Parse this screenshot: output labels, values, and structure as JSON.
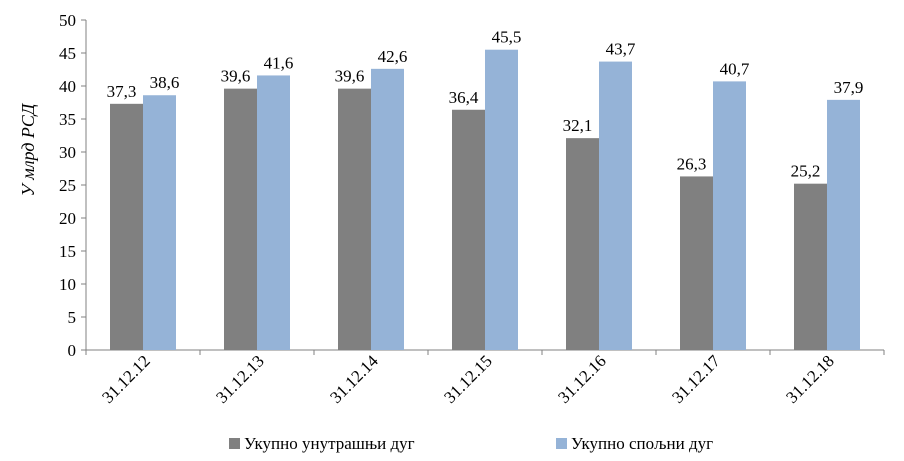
{
  "chart_data": {
    "type": "bar",
    "categories": [
      "31.12.12",
      "31.12.13",
      "31.12.14",
      "31.12.15",
      "31.12.16",
      "31.12.17",
      "31.12.18"
    ],
    "series": [
      {
        "name": "Укупно унутрашњи дуг",
        "color": "#808080",
        "values": [
          37.3,
          39.6,
          39.6,
          36.4,
          32.1,
          26.3,
          25.2
        ],
        "labels": [
          "37,3",
          "39,6",
          "39,6",
          "36,4",
          "32,1",
          "26,3",
          "25,2"
        ]
      },
      {
        "name": "Укупно спољни дуг",
        "color": "#95B3D7",
        "values": [
          38.6,
          41.6,
          42.6,
          45.5,
          43.7,
          40.7,
          37.9
        ],
        "labels": [
          "38,6",
          "41,6",
          "42,6",
          "45,5",
          "43,7",
          "40,7",
          "37,9"
        ]
      }
    ],
    "ylabel": "У млрд РСД",
    "ylim": [
      0,
      50
    ],
    "yticks": [
      0,
      5,
      10,
      15,
      20,
      25,
      30,
      35,
      40,
      45,
      50
    ],
    "grid": false,
    "legend": "bottom"
  }
}
